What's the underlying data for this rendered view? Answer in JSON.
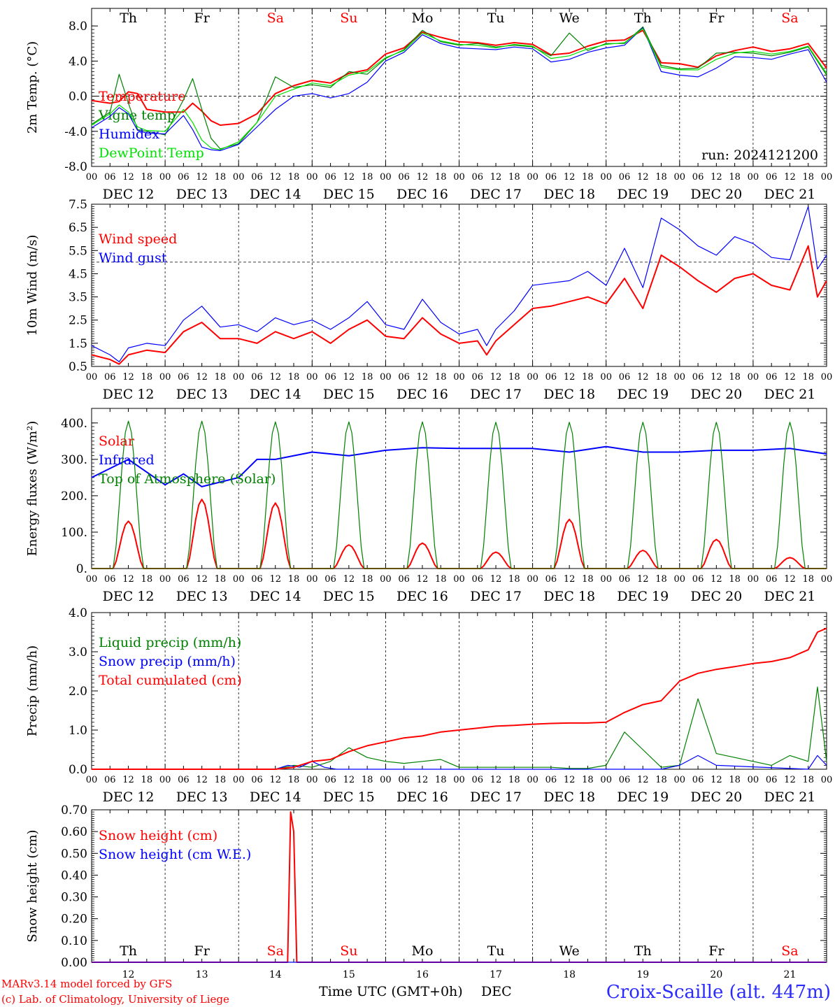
{
  "days": [
    "Th",
    "Fr",
    "Sa",
    "Su",
    "Mo",
    "Tu",
    "We",
    "Th",
    "Fr",
    "Sa"
  ],
  "weekend_days": [
    "Sa",
    "Su"
  ],
  "dates": [
    "DEC 12",
    "DEC 13",
    "DEC 14",
    "DEC 15",
    "DEC 16",
    "DEC 17",
    "DEC 18",
    "DEC 19",
    "DEC 20",
    "DEC 21"
  ],
  "day_numbers": [
    "12",
    "13",
    "14",
    "15",
    "16",
    "17",
    "18",
    "19",
    "20",
    "21"
  ],
  "hour_ticks": [
    "00",
    "06",
    "12",
    "18"
  ],
  "hour_tick_last": "00",
  "colors": {
    "red": "#ff0000",
    "green": "#008000",
    "blue": "#0000ff",
    "lightgreen": "#00e000",
    "grey": "#222222"
  },
  "footer": {
    "model": "MARv3.14 model forced by GFS",
    "lab": "(c) Lab. of Climatology, University of Liege",
    "xlabel": "Time UTC (GMT+0h)",
    "month": "DEC",
    "station": "Croix-Scaille (alt. 447m)"
  },
  "chart_data": [
    {
      "id": "temp",
      "type": "line",
      "ylabel": "2m Temp. (°C)",
      "ylim": [
        -8,
        10
      ],
      "yticks": [
        "8.0",
        "4.0",
        "0.0",
        "-4.0",
        "-8.0"
      ],
      "ytick_values": [
        8,
        4,
        0,
        -4,
        -8
      ],
      "ref_line": 0,
      "run_label": "run: 2024121200",
      "x_hours": [
        0,
        6,
        9,
        12,
        15,
        18,
        24,
        30,
        33,
        36,
        39,
        42,
        48,
        54,
        60,
        66,
        72,
        78,
        84,
        90,
        96,
        102,
        108,
        114,
        120,
        126,
        132,
        138,
        144,
        150,
        156,
        162,
        168,
        174,
        180,
        186,
        192,
        198,
        204,
        210,
        216,
        222,
        228,
        234,
        240
      ],
      "series": [
        {
          "name": "Temperature",
          "color": "red",
          "values": [
            -0.5,
            -0.8,
            -0.6,
            0.5,
            0.3,
            -1.5,
            -1.8,
            -1.8,
            -0.8,
            -1.7,
            -2.8,
            -3.3,
            -3.1,
            -2.0,
            0.3,
            1.2,
            1.8,
            1.5,
            2.6,
            3.0,
            4.8,
            5.5,
            7.3,
            6.7,
            6.2,
            6.1,
            5.8,
            6.1,
            5.9,
            4.7,
            4.9,
            5.7,
            6.3,
            6.4,
            7.5,
            3.8,
            3.7,
            3.3,
            4.6,
            5.2,
            5.6,
            5.1,
            5.4,
            6.0,
            3.2
          ]
        },
        {
          "name": "Vigne temp",
          "color": "green",
          "values": [
            -3.2,
            -1.8,
            2.5,
            -0.8,
            -3.8,
            -4.0,
            -4.4,
            -0.4,
            2.0,
            -1.5,
            -4.8,
            -6.0,
            -5.4,
            -3.0,
            2.2,
            1.0,
            1.3,
            1.0,
            2.8,
            2.5,
            4.3,
            5.3,
            7.5,
            6.2,
            5.8,
            6.0,
            5.6,
            5.8,
            5.6,
            4.6,
            7.2,
            5.2,
            6.0,
            6.0,
            7.9,
            3.5,
            3.1,
            3.2,
            4.9,
            5.0,
            4.9,
            4.6,
            5.0,
            5.6,
            2.4
          ]
        },
        {
          "name": "Humidex",
          "color": "blue",
          "values": [
            -3.6,
            -2.3,
            -1.3,
            -2.0,
            -3.9,
            -4.2,
            -4.3,
            -2.2,
            -3.8,
            -5.8,
            -6.1,
            -6.2,
            -5.5,
            -3.5,
            -1.5,
            0.0,
            0.3,
            -0.2,
            0.3,
            1.6,
            4.0,
            5.0,
            7.0,
            6.0,
            5.5,
            5.4,
            5.3,
            5.6,
            5.4,
            3.9,
            4.2,
            5.0,
            5.5,
            5.8,
            7.8,
            2.8,
            2.4,
            2.2,
            3.2,
            4.5,
            4.4,
            4.2,
            4.8,
            5.3,
            1.6
          ]
        },
        {
          "name": "DewPoint Temp",
          "color": "lightgreen",
          "values": [
            -3.3,
            -2.0,
            -1.0,
            -1.8,
            -3.5,
            -3.9,
            -4.0,
            -1.5,
            -3.0,
            -5.0,
            -5.9,
            -6.1,
            -5.2,
            -3.0,
            0.0,
            0.8,
            1.5,
            1.2,
            2.4,
            2.8,
            4.4,
            5.2,
            7.2,
            6.3,
            5.9,
            5.8,
            5.5,
            5.9,
            5.7,
            4.3,
            4.6,
            5.4,
            5.9,
            6.1,
            7.7,
            3.3,
            3.0,
            3.0,
            4.2,
            4.9,
            5.1,
            4.8,
            5.1,
            5.7,
            2.6
          ]
        }
      ]
    },
    {
      "id": "wind",
      "type": "line",
      "ylabel": "10m Wind (m/s)",
      "ylim": [
        0.5,
        7.5
      ],
      "yticks": [
        "7.5",
        "6.5",
        "5.5",
        "4.5",
        "3.5",
        "2.5",
        "1.5",
        "0.5"
      ],
      "ytick_values": [
        7.5,
        6.5,
        5.5,
        4.5,
        3.5,
        2.5,
        1.5,
        0.5
      ],
      "ref_line": 5,
      "x_hours": [
        0,
        6,
        9,
        12,
        18,
        24,
        30,
        36,
        42,
        48,
        54,
        60,
        66,
        72,
        78,
        84,
        90,
        96,
        102,
        108,
        114,
        120,
        126,
        129,
        132,
        138,
        144,
        150,
        156,
        162,
        168,
        174,
        180,
        186,
        192,
        198,
        204,
        210,
        216,
        222,
        228,
        234,
        237,
        240
      ],
      "series": [
        {
          "name": "Wind speed",
          "color": "red",
          "values": [
            1.0,
            0.8,
            0.6,
            1.0,
            1.2,
            1.1,
            2.0,
            2.4,
            1.7,
            1.7,
            1.5,
            2.0,
            1.7,
            2.0,
            1.5,
            2.1,
            2.5,
            1.8,
            1.7,
            2.6,
            1.9,
            1.5,
            1.6,
            1.0,
            1.6,
            2.3,
            3.0,
            3.1,
            3.3,
            3.5,
            3.2,
            4.3,
            3.0,
            5.3,
            4.8,
            4.2,
            3.7,
            4.3,
            4.5,
            4.0,
            3.8,
            5.7,
            3.5,
            4.2
          ]
        },
        {
          "name": "Wind gust",
          "color": "blue",
          "values": [
            1.4,
            1.0,
            0.7,
            1.3,
            1.5,
            1.4,
            2.5,
            3.1,
            2.2,
            2.3,
            2.0,
            2.6,
            2.3,
            2.5,
            2.1,
            2.6,
            3.3,
            2.3,
            2.1,
            3.4,
            2.4,
            1.9,
            2.1,
            1.4,
            2.1,
            2.9,
            4.0,
            4.1,
            4.2,
            4.6,
            4.0,
            5.6,
            3.9,
            6.9,
            6.4,
            5.7,
            5.3,
            6.1,
            5.8,
            5.2,
            5.1,
            7.4,
            4.7,
            5.3
          ]
        }
      ]
    },
    {
      "id": "energy",
      "type": "line",
      "ylabel": "Energy fluxes (W/m²)",
      "ylim": [
        0,
        440
      ],
      "yticks": [
        "400.",
        "300.",
        "200.",
        "100.",
        "0."
      ],
      "ytick_values": [
        400,
        300,
        200,
        100,
        0
      ],
      "series_hourly": true,
      "series": [
        {
          "name": "Solar",
          "color": "red",
          "peaks": [
            130,
            190,
            180,
            65,
            70,
            45,
            135,
            50,
            80,
            30
          ]
        },
        {
          "name": "Infrared",
          "color": "blue",
          "x_hours": [
            0,
            12,
            24,
            30,
            36,
            48,
            54,
            60,
            72,
            84,
            96,
            108,
            120,
            132,
            144,
            156,
            168,
            180,
            192,
            204,
            216,
            228,
            240
          ],
          "values": [
            250,
            300,
            230,
            260,
            225,
            250,
            300,
            300,
            320,
            310,
            325,
            332,
            330,
            330,
            330,
            320,
            335,
            320,
            320,
            325,
            325,
            330,
            315
          ]
        },
        {
          "name": "Top of Atmosphere (Solar)",
          "color": "green",
          "peaks": [
            405,
            405,
            403,
            403,
            403,
            402,
            402,
            402,
            402,
            402
          ]
        }
      ]
    },
    {
      "id": "precip",
      "type": "line",
      "ylabel": "Precip (mm/h)",
      "ylim": [
        0,
        4
      ],
      "yticks": [
        "4.0",
        "3.0",
        "2.0",
        "1.0",
        "0.0"
      ],
      "ytick_values": [
        4,
        3,
        2,
        1,
        0
      ],
      "series": [
        {
          "name": "Liquid precip (mm/h)",
          "color": "green",
          "x_hours": [
            0,
            60,
            66,
            72,
            78,
            84,
            90,
            96,
            102,
            108,
            114,
            120,
            126,
            132,
            138,
            144,
            150,
            156,
            162,
            168,
            174,
            180,
            186,
            192,
            198,
            204,
            210,
            216,
            222,
            228,
            234,
            237,
            240
          ],
          "values": [
            0,
            0,
            0.1,
            0.05,
            0.2,
            0.55,
            0.3,
            0.2,
            0.15,
            0.2,
            0.25,
            0.05,
            0.05,
            0.05,
            0.05,
            0.05,
            0.05,
            0.02,
            0.02,
            0.1,
            0.95,
            0.5,
            0.05,
            0.1,
            1.8,
            0.4,
            0.3,
            0.2,
            0.1,
            0.35,
            0.2,
            2.1,
            0.2
          ]
        },
        {
          "name": "Snow precip (mm/h)",
          "color": "blue",
          "x_hours": [
            0,
            60,
            64,
            68,
            72,
            76,
            80,
            186,
            192,
            198,
            204,
            234,
            237,
            240
          ],
          "values": [
            0,
            0,
            0.1,
            0.05,
            0.2,
            0.05,
            0,
            0,
            0.1,
            0.35,
            0.1,
            0,
            0.35,
            0.1
          ]
        },
        {
          "name": "Total cumulated (cm)",
          "color": "red",
          "x_hours": [
            0,
            60,
            66,
            72,
            78,
            84,
            90,
            96,
            102,
            108,
            114,
            120,
            126,
            132,
            138,
            144,
            150,
            156,
            162,
            168,
            174,
            180,
            186,
            192,
            198,
            204,
            210,
            216,
            222,
            228,
            234,
            237,
            240
          ],
          "values": [
            0,
            0,
            0.05,
            0.2,
            0.25,
            0.45,
            0.6,
            0.7,
            0.8,
            0.85,
            0.95,
            1.0,
            1.05,
            1.1,
            1.12,
            1.15,
            1.17,
            1.18,
            1.18,
            1.2,
            1.45,
            1.65,
            1.75,
            2.25,
            2.45,
            2.55,
            2.62,
            2.7,
            2.75,
            2.85,
            3.05,
            3.5,
            3.6
          ]
        }
      ]
    },
    {
      "id": "snow",
      "type": "line",
      "ylabel": "Snow height (cm)",
      "ylim": [
        0,
        0.7
      ],
      "yticks": [
        "0.70",
        "0.60",
        "0.50",
        "0.40",
        "0.30",
        "0.20",
        "0.10",
        "0.00"
      ],
      "ytick_values": [
        0.7,
        0.6,
        0.5,
        0.4,
        0.3,
        0.2,
        0.1,
        0.0
      ],
      "series": [
        {
          "name": "Snow height (cm)",
          "color": "red",
          "x_hours": [
            0,
            64,
            65,
            66,
            67,
            240
          ],
          "values": [
            0,
            0,
            0.69,
            0.6,
            0,
            0
          ]
        },
        {
          "name": "Snow height (cm W.E.)",
          "color": "blue",
          "x_hours": [
            0,
            240
          ],
          "values": [
            0,
            0
          ]
        }
      ]
    }
  ]
}
